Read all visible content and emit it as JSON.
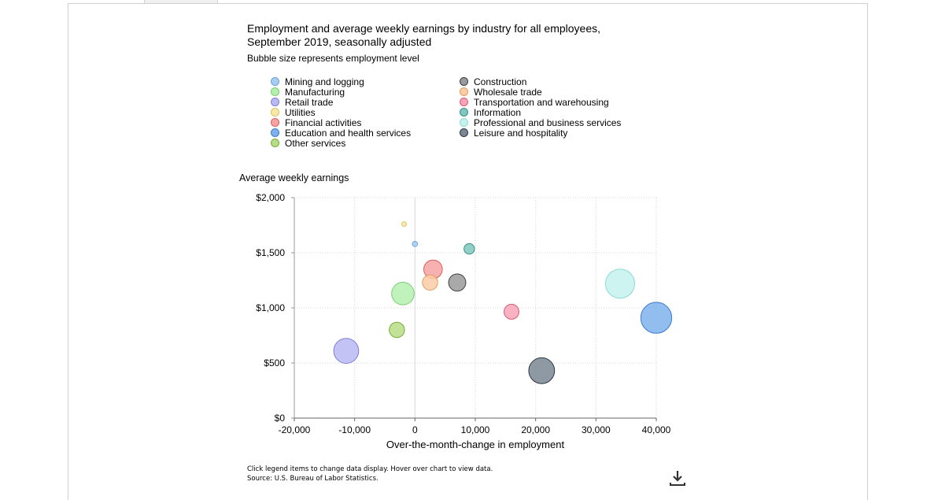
{
  "header": {
    "title_line1": "Employment and average weekly earnings by industry for all employees,",
    "title_line2": "September 2019, seasonally adjusted",
    "subtitle": "Bubble size represents employment level"
  },
  "legend": {
    "left": [
      {
        "label": "Mining and logging",
        "color": "#a9cdf3",
        "stroke": "#6fa0d6"
      },
      {
        "label": "Manufacturing",
        "color": "#b5f0b0",
        "stroke": "#7acd73"
      },
      {
        "label": "Retail trade",
        "color": "#b9b9f3",
        "stroke": "#7f7fd8"
      },
      {
        "label": "Utilities",
        "color": "#fbe8a6",
        "stroke": "#d9c266"
      },
      {
        "label": "Financial activities",
        "color": "#f6a3a3",
        "stroke": "#dd5d5d"
      },
      {
        "label": "Education and health services",
        "color": "#7fb2ec",
        "stroke": "#3b7bd0"
      },
      {
        "label": "Other services",
        "color": "#b7dd86",
        "stroke": "#79ad3c"
      }
    ],
    "right": [
      {
        "label": "Construction",
        "color": "#9a9a9a",
        "stroke": "#3e3e3e"
      },
      {
        "label": "Wholesale trade",
        "color": "#fdcda6",
        "stroke": "#e39b5e"
      },
      {
        "label": "Transportation and warehousing",
        "color": "#f7a4b6",
        "stroke": "#d95a78"
      },
      {
        "label": "Information",
        "color": "#7ec7c0",
        "stroke": "#3b8f87"
      },
      {
        "label": "Professional and business services",
        "color": "#c6f2ee",
        "stroke": "#8cdcd4"
      },
      {
        "label": "Leisure and hospitality",
        "color": "#7b8794",
        "stroke": "#2e3640"
      }
    ]
  },
  "chart_data": {
    "type": "scatter",
    "bubble": true,
    "ylabel": "Average weekly earnings",
    "xlabel": "Over-the-month-change in employment",
    "xlim": [
      -20000,
      40000
    ],
    "ylim": [
      0,
      2000
    ],
    "xticks": [
      "-20,000",
      "-10,000",
      "0",
      "10,000",
      "20,000",
      "30,000",
      "40,000"
    ],
    "yticks": [
      "$0",
      "$500",
      "$1,000",
      "$1,500",
      "$2,000"
    ],
    "grid": true,
    "series": [
      {
        "name": "Mining and logging",
        "x": 0,
        "y": 1580,
        "size": 0.7,
        "color": "#a9cdf3",
        "stroke": "#6fa0d6"
      },
      {
        "name": "Manufacturing",
        "x": -2000,
        "y": 1130,
        "size": 12.8,
        "color": "#b5f0b0",
        "stroke": "#7acd73"
      },
      {
        "name": "Retail trade",
        "x": -11400,
        "y": 610,
        "size": 15.7,
        "color": "#b9b9f3",
        "stroke": "#7f7fd8"
      },
      {
        "name": "Utilities",
        "x": -1800,
        "y": 1760,
        "size": 0.55,
        "color": "#fbe8a6",
        "stroke": "#d9c266"
      },
      {
        "name": "Financial activities",
        "x": 3000,
        "y": 1350,
        "size": 8.7,
        "color": "#f6a3a3",
        "stroke": "#dd5d5d"
      },
      {
        "name": "Education and health services",
        "x": 40000,
        "y": 910,
        "size": 24.2,
        "color": "#7fb2ec",
        "stroke": "#3b7bd0"
      },
      {
        "name": "Other services",
        "x": -3000,
        "y": 800,
        "size": 5.9,
        "color": "#b7dd86",
        "stroke": "#79ad3c"
      },
      {
        "name": "Construction",
        "x": 7000,
        "y": 1230,
        "size": 7.5,
        "color": "#9a9a9a",
        "stroke": "#3e3e3e"
      },
      {
        "name": "Wholesale trade",
        "x": 2500,
        "y": 1230,
        "size": 5.9,
        "color": "#fdcda6",
        "stroke": "#e39b5e"
      },
      {
        "name": "Transportation and warehousing",
        "x": 16000,
        "y": 965,
        "size": 5.6,
        "color": "#f7a4b6",
        "stroke": "#d95a78"
      },
      {
        "name": "Information",
        "x": 9000,
        "y": 1535,
        "size": 2.8,
        "color": "#7ec7c0",
        "stroke": "#3b8f87"
      },
      {
        "name": "Professional and business services",
        "x": 34000,
        "y": 1220,
        "size": 21.4,
        "color": "#c6f2ee",
        "stroke": "#8cdcd4"
      },
      {
        "name": "Leisure and hospitality",
        "x": 21000,
        "y": 430,
        "size": 16.8,
        "color": "#7b8794",
        "stroke": "#2e3640"
      }
    ]
  },
  "footer": {
    "note": "Click legend items to change data display. Hover over chart to view data.",
    "source": "Source: U.S. Bureau of Labor Statistics."
  },
  "icons": {
    "download": "download-icon"
  }
}
